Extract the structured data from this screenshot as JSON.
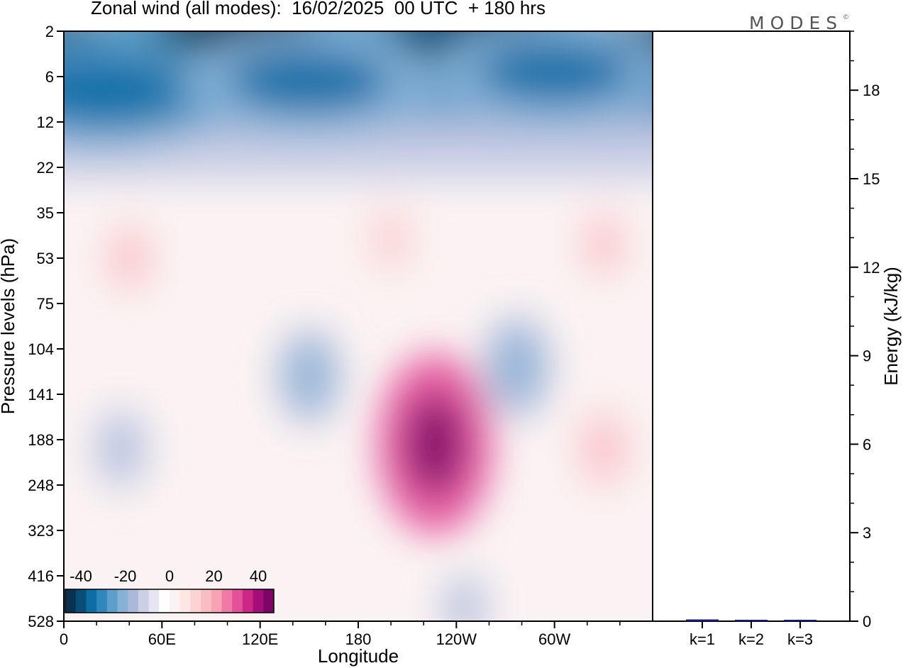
{
  "title": "Zonal wind (all modes):  16/02/2025  00 UTC  + 180 hrs",
  "brand": "MODES",
  "brand_mark": "©",
  "colors": {
    "negative": [
      "#08324f",
      "#0a4d78",
      "#0d6ea6",
      "#2f87bd",
      "#5d9fca",
      "#86b1d6",
      "#aab9da",
      "#ccd0e6",
      "#e7e5f1"
    ],
    "neutral": "#fbf3f3",
    "positive": [
      "#fde6e4",
      "#fbd3d4",
      "#f9bcc3",
      "#f6a3b3",
      "#f07aa6",
      "#e4509a",
      "#cc2787",
      "#a50d78",
      "#7e0468",
      "#560257"
    ]
  },
  "chart_data": [
    {
      "type": "heatmap",
      "xlabel": "Longitude",
      "ylabel": "Pressure levels (hPa)",
      "x_ticks": [
        "0",
        "60E",
        "120E",
        "180",
        "120W",
        "60W"
      ],
      "y_ticks": [
        "2",
        "6",
        "12",
        "22",
        "35",
        "53",
        "75",
        "104",
        "141",
        "188",
        "248",
        "323",
        "416",
        "528"
      ],
      "colorbar": {
        "labels": [
          "-40",
          "-20",
          "0",
          "20",
          "40"
        ],
        "range": [
          -45,
          45
        ]
      },
      "features": [
        {
          "lon": 110,
          "level": 0.15,
          "value": -44
        },
        {
          "lon": 225,
          "level": 0.45,
          "value": -38
        },
        {
          "lon": 250,
          "level": 0.05,
          "value": -40
        },
        {
          "lon": 25,
          "level": 1.3,
          "value": -36
        },
        {
          "lon": 150,
          "level": 1.1,
          "value": -34
        },
        {
          "lon": 300,
          "level": 0.9,
          "value": -32
        },
        {
          "lon": 40,
          "level": 5.0,
          "value": 9
        },
        {
          "lon": 200,
          "level": 4.6,
          "value": 7
        },
        {
          "lon": 330,
          "level": 4.7,
          "value": 8
        },
        {
          "lon": 35,
          "level": 9.2,
          "value": -13
        },
        {
          "lon": 150,
          "level": 7.6,
          "value": -16
        },
        {
          "lon": 277,
          "level": 7.4,
          "value": -18
        },
        {
          "lon": 227,
          "level": 9.1,
          "value": 41
        },
        {
          "lon": 330,
          "level": 9.2,
          "value": 12
        },
        {
          "lon": 245,
          "level": 12.7,
          "value": -9
        }
      ]
    },
    {
      "type": "bar",
      "categories": [
        "k=1",
        "k=2",
        "k=3"
      ],
      "values": [
        0.06,
        0.03,
        0.03
      ],
      "ylabel": "Energy (kJ/kg)",
      "ylim": [
        0,
        20
      ],
      "y_ticks": [
        "0",
        "3",
        "6",
        "9",
        "12",
        "15",
        "18"
      ]
    }
  ]
}
